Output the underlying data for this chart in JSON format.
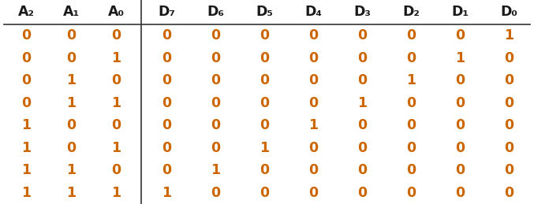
{
  "headers": [
    "A₂",
    "A₁",
    "A₀",
    "D₇",
    "D₆",
    "D₅",
    "D₄",
    "D₃",
    "D₂",
    "D₁",
    "D₀"
  ],
  "rows": [
    [
      0,
      0,
      0,
      0,
      0,
      0,
      0,
      0,
      0,
      0,
      1
    ],
    [
      0,
      0,
      1,
      0,
      0,
      0,
      0,
      0,
      0,
      1,
      0
    ],
    [
      0,
      1,
      0,
      0,
      0,
      0,
      0,
      0,
      1,
      0,
      0
    ],
    [
      0,
      1,
      1,
      0,
      0,
      0,
      0,
      1,
      0,
      0,
      0
    ],
    [
      1,
      0,
      0,
      0,
      0,
      0,
      1,
      0,
      0,
      0,
      0
    ],
    [
      1,
      0,
      1,
      0,
      0,
      1,
      0,
      0,
      0,
      0,
      0
    ],
    [
      1,
      1,
      0,
      0,
      1,
      0,
      0,
      0,
      0,
      0,
      0
    ],
    [
      1,
      1,
      1,
      1,
      0,
      0,
      0,
      0,
      0,
      0,
      0
    ]
  ],
  "header_color": "#1a1a1a",
  "data_color": "#cc6600",
  "bg_color": "#ffffff",
  "fig_width": 6.77,
  "fig_height": 2.59,
  "header_fontsize": 12.5,
  "data_fontsize": 12.5
}
